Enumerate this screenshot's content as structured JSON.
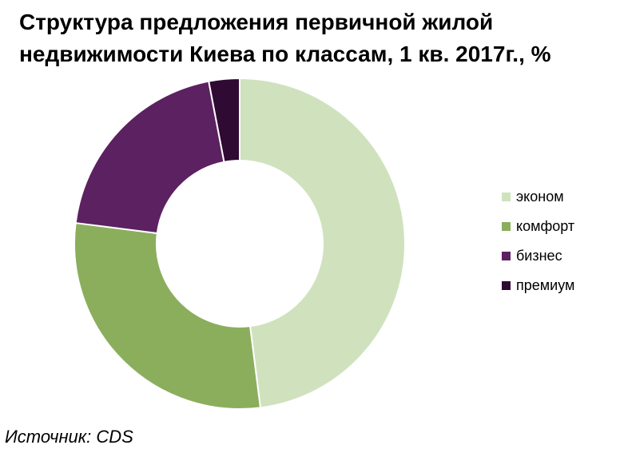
{
  "title": {
    "line1": "Структура предложения первичной жилой",
    "line2": "недвижимости Киева по классам, 1 кв. 2017г., %"
  },
  "source": "Источник: CDS",
  "chart_data": {
    "type": "pie",
    "style": "donut",
    "title": "Структура предложения первичной жилой недвижимости Киева по классам, 1 кв. 2017г., %",
    "categories": [
      "эконом",
      "комфорт",
      "бизнес",
      "премиум"
    ],
    "values": [
      48,
      29,
      20,
      3
    ],
    "colors": [
      "#cfe2bd",
      "#8bae5d",
      "#5c2160",
      "#2f0a33"
    ],
    "legend_position": "right",
    "start_angle_deg": 0,
    "direction": "clockwise"
  }
}
